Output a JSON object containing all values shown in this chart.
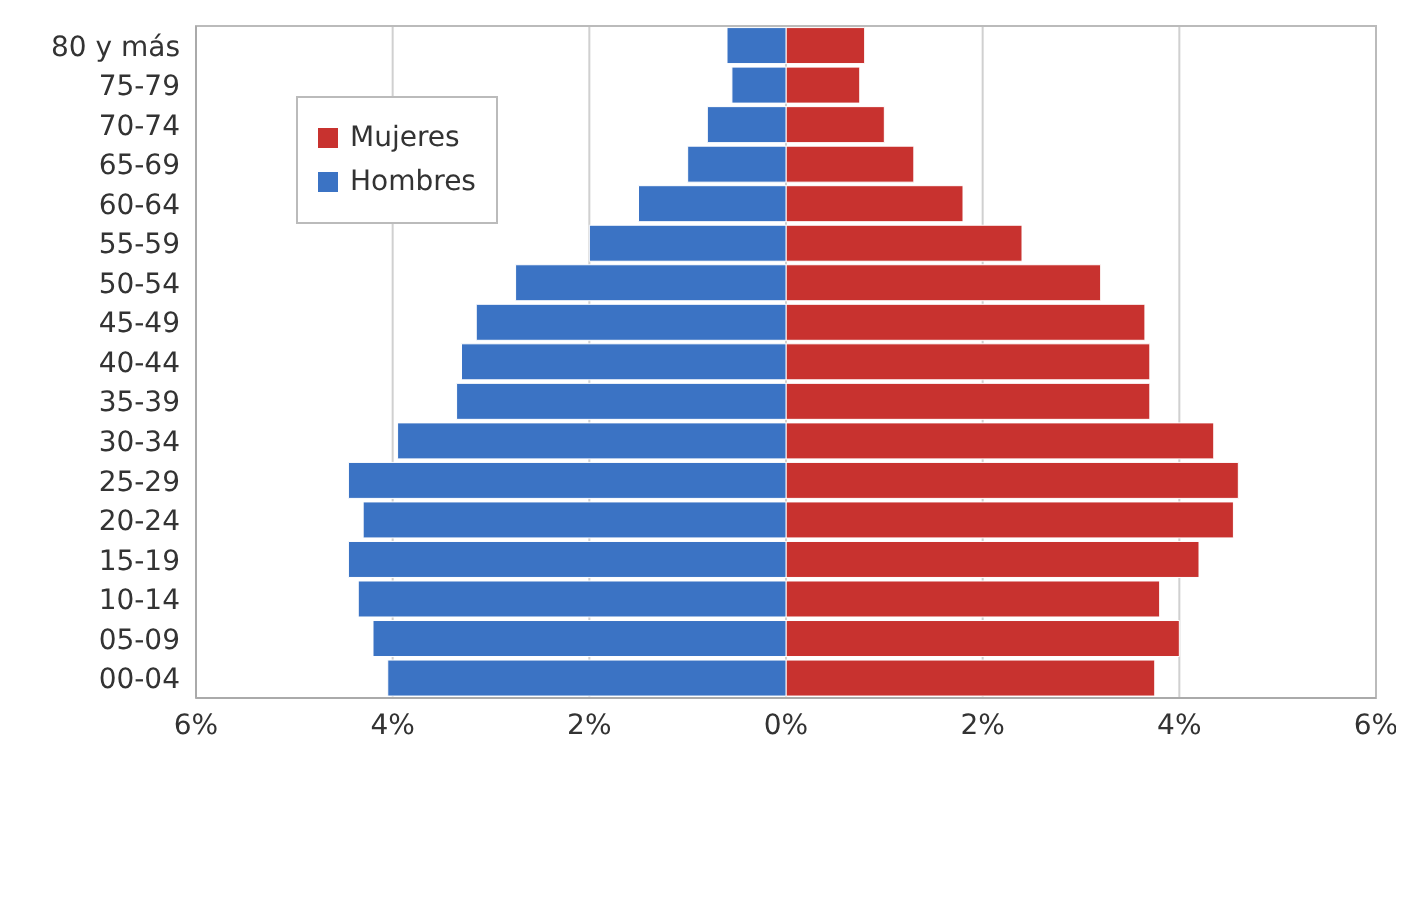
{
  "chart_data": {
    "type": "bar",
    "orientation": "horizontal",
    "stacked": true,
    "categories": [
      "80 y más",
      "75-79",
      "70-74",
      "65-69",
      "60-64",
      "55-59",
      "50-54",
      "45-49",
      "40-44",
      "35-39",
      "30-34",
      "25-29",
      "20-24",
      "15-19",
      "10-14",
      "05-09",
      "00-04"
    ],
    "series": [
      {
        "name": "Mujeres",
        "color": "#c8322f",
        "values": [
          0.8,
          0.75,
          1.0,
          1.3,
          1.8,
          2.4,
          3.2,
          3.65,
          3.7,
          3.7,
          4.35,
          4.6,
          4.55,
          4.2,
          3.8,
          4.0,
          3.75
        ]
      },
      {
        "name": "Hombres",
        "color": "#3b73c4",
        "values": [
          -0.6,
          -0.55,
          -0.8,
          -1.0,
          -1.5,
          -2.0,
          -2.75,
          -3.15,
          -3.3,
          -3.35,
          -3.95,
          -4.45,
          -4.3,
          -4.45,
          -4.35,
          -4.2,
          -4.05
        ]
      }
    ],
    "xlim": [
      -6,
      6
    ],
    "xticks": [
      {
        "value": -6,
        "label": "6%"
      },
      {
        "value": -4,
        "label": "4%"
      },
      {
        "value": -2,
        "label": "2%"
      },
      {
        "value": 0,
        "label": "0%"
      },
      {
        "value": 2,
        "label": "2%"
      },
      {
        "value": 4,
        "label": "4%"
      },
      {
        "value": 6,
        "label": "6%"
      }
    ],
    "grid": "x",
    "legend": "top left"
  }
}
